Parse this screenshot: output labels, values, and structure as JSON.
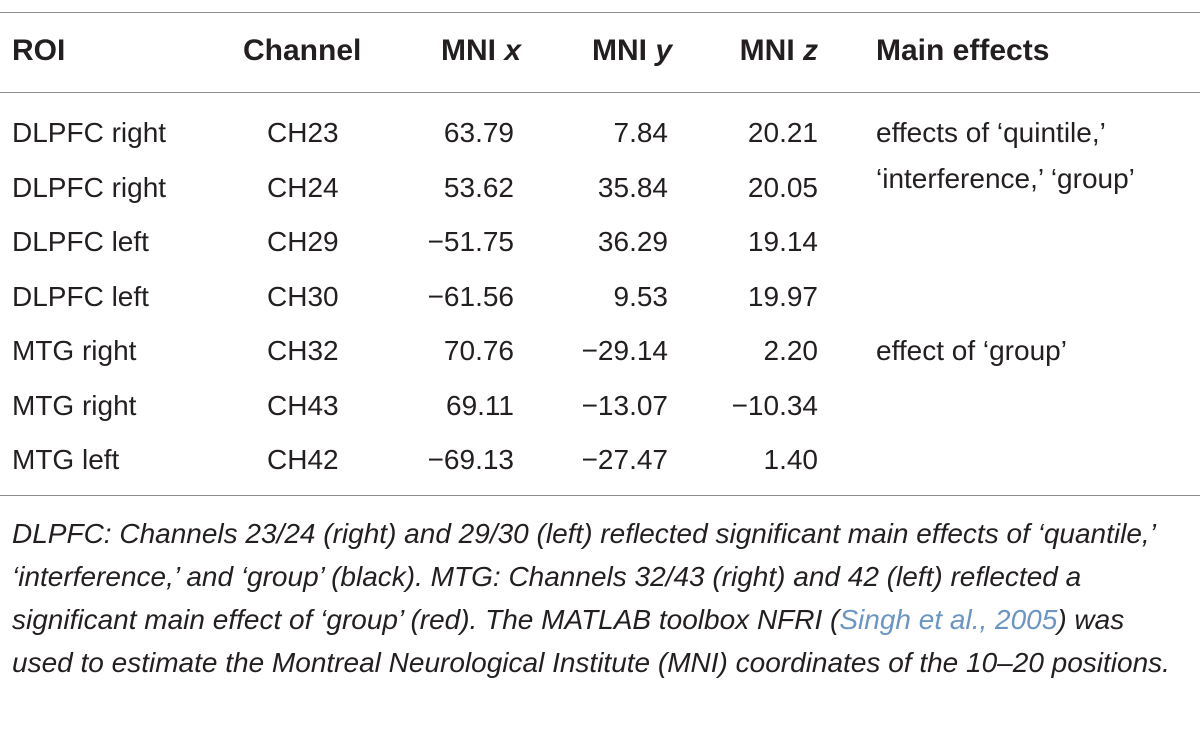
{
  "table": {
    "headers": {
      "roi": "ROI",
      "channel": "Channel",
      "mni_x_prefix": "MNI ",
      "mni_x_var": "x",
      "mni_y_prefix": "MNI ",
      "mni_y_var": "y",
      "mni_z_prefix": "MNI ",
      "mni_z_var": "z",
      "main_effects": "Main effects"
    },
    "rows": [
      {
        "roi": "DLPFC right",
        "channel": "CH23",
        "x": "63.79",
        "y": "7.84",
        "z": "20.21"
      },
      {
        "roi": "DLPFC right",
        "channel": "CH24",
        "x": "53.62",
        "y": "35.84",
        "z": "20.05"
      },
      {
        "roi": "DLPFC left",
        "channel": "CH29",
        "x": "−51.75",
        "y": "36.29",
        "z": "19.14"
      },
      {
        "roi": "DLPFC left",
        "channel": "CH30",
        "x": "−61.56",
        "y": "9.53",
        "z": "19.97"
      },
      {
        "roi": "MTG right",
        "channel": "CH32",
        "x": "70.76",
        "y": "−29.14",
        "z": "2.20"
      },
      {
        "roi": "MTG right",
        "channel": "CH43",
        "x": "69.11",
        "y": "−13.07",
        "z": "−10.34"
      },
      {
        "roi": "MTG left",
        "channel": "CH42",
        "x": "−69.13",
        "y": "−27.47",
        "z": "1.40"
      }
    ],
    "effects": {
      "dlpfc_line1": "effects of ‘quintile,’",
      "dlpfc_line2": "‘interference,’ ‘group’",
      "mtg": "effect of ‘group’"
    }
  },
  "footnote": {
    "part1": "DLPFC: Channels 23/24 (right) and 29/30 (left) reflected significant main effects of ‘quantile,’ ‘interference,’ and ‘group’ (black). MTG: Channels 32/43 (right) and 42 (left) reflected a significant main effect of ‘group’ (red). The MATLAB toolbox NFRI (",
    "citation": "Singh et al., 2005",
    "part2": ") was used to estimate the Montreal Neurological Institute (MNI) coordinates of the 10–20 positions."
  }
}
